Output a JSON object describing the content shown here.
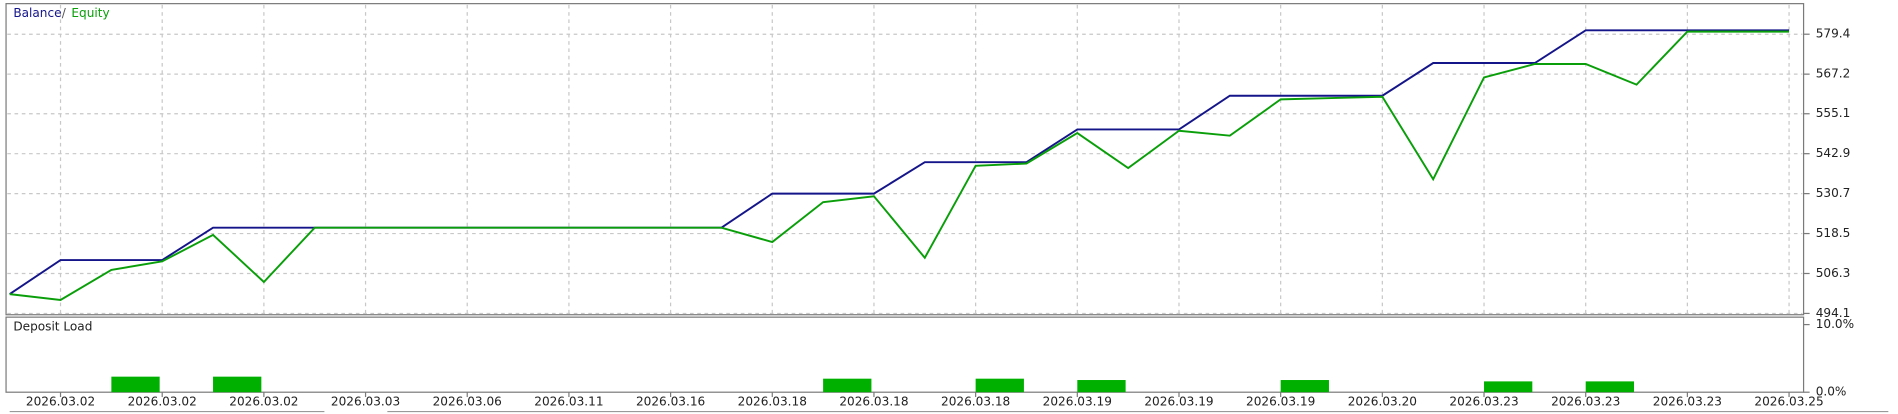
{
  "chart_data": [
    {
      "type": "line",
      "legend_separator": "/",
      "categories": [
        null,
        "2026.03.02",
        null,
        "2026.03.02",
        null,
        "2026.03.02",
        null,
        "2026.03.03",
        null,
        "2026.03.06",
        null,
        "2026.03.11",
        null,
        "2026.03.16",
        null,
        "2026.03.18",
        null,
        "2026.03.18",
        null,
        "2026.03.18",
        null,
        "2026.03.19",
        null,
        "2026.03.19",
        null,
        "2026.03.19",
        null,
        "2026.03.20",
        null,
        "2026.03.23",
        null,
        "2026.03.23",
        null,
        "2026.03.23",
        null,
        "2026.03.25"
      ],
      "series": [
        {
          "name": "Balance",
          "color": "#15158a",
          "values": [
            500.0,
            510.4,
            510.4,
            510.4,
            520.3,
            520.3,
            520.3,
            520.3,
            520.3,
            520.3,
            520.3,
            520.3,
            520.3,
            520.3,
            520.3,
            530.7,
            530.7,
            530.7,
            540.3,
            540.3,
            540.3,
            550.3,
            550.3,
            550.3,
            560.6,
            560.6,
            560.6,
            560.6,
            570.6,
            570.6,
            570.6,
            580.6,
            580.6,
            580.6,
            580.6,
            580.6
          ]
        },
        {
          "name": "Equity",
          "color": "#0a9f0a",
          "values": [
            500.0,
            498.2,
            507.4,
            510.0,
            518.1,
            503.7,
            520.3,
            520.3,
            520.3,
            520.3,
            520.3,
            520.3,
            520.3,
            520.3,
            520.3,
            515.9,
            528.1,
            529.9,
            511.1,
            539.2,
            539.9,
            549.2,
            538.5,
            549.9,
            548.4,
            559.5,
            559.9,
            560.3,
            535.1,
            566.2,
            570.3,
            570.3,
            564.0,
            580.2,
            580.2,
            580.2
          ]
        }
      ],
      "ylim": [
        493.7,
        588.0
      ],
      "yticks": [
        579.4,
        567.2,
        555.1,
        542.9,
        530.7,
        518.5,
        506.3,
        494.1
      ],
      "grid": true
    },
    {
      "type": "bar",
      "title": "Deposit Load",
      "color": "#00b000",
      "values": [
        null,
        null,
        2.3,
        null,
        2.3,
        null,
        null,
        null,
        null,
        null,
        null,
        null,
        null,
        null,
        null,
        null,
        2.0,
        null,
        null,
        2.0,
        null,
        1.8,
        null,
        null,
        null,
        1.8,
        null,
        null,
        null,
        1.6,
        null,
        1.6,
        null,
        null,
        null,
        null
      ],
      "ylim": [
        0,
        11.1
      ],
      "yticks": [
        {
          "value": 10,
          "label": "10.0%"
        },
        {
          "value": 0,
          "label": "0.0%"
        }
      ]
    }
  ]
}
